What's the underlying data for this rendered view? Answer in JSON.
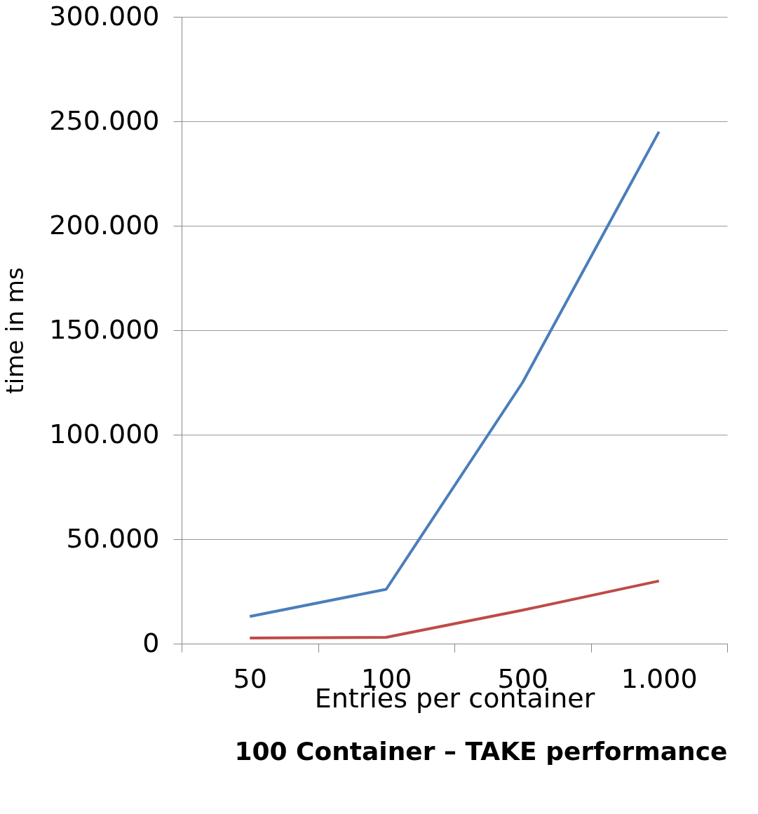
{
  "chart_data": {
    "type": "line",
    "title": "100 Container – TAKE performance",
    "xlabel": "Entries per container",
    "ylabel": "time in ms",
    "categories": [
      "50",
      "100",
      "500",
      "1.000"
    ],
    "series": [
      {
        "color": "#4a7ebb",
        "values": [
          13000,
          26000,
          125000,
          245000
        ]
      },
      {
        "color": "#be4b48",
        "values": [
          2700,
          3000,
          16000,
          30000
        ]
      }
    ],
    "ylim": [
      0,
      300000
    ],
    "yticks": [
      {
        "value": 0,
        "label": "0"
      },
      {
        "value": 50000,
        "label": "50.000"
      },
      {
        "value": 100000,
        "label": "100.000"
      },
      {
        "value": 150000,
        "label": "150.000"
      },
      {
        "value": 200000,
        "label": "200.000"
      },
      {
        "value": 250000,
        "label": "250.000"
      },
      {
        "value": 300000,
        "label": "300.000"
      }
    ],
    "grid": "y",
    "legend": false,
    "marker": "none",
    "line_style": "solid"
  }
}
